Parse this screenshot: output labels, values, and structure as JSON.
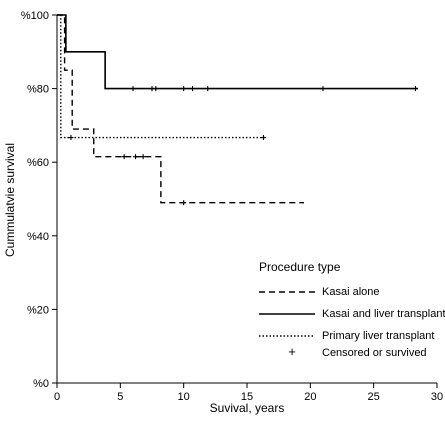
{
  "chart_data": {
    "type": "line",
    "subtype": "kaplan-meier-step",
    "xlabel": "Suvival, years",
    "ylabel": "Cummulatvie survival",
    "xlim": [
      0,
      30
    ],
    "ylim": [
      0,
      100
    ],
    "x_ticks": [
      0,
      5,
      10,
      15,
      20,
      25,
      30
    ],
    "y_ticks": [
      {
        "value": 0,
        "label": "%0"
      },
      {
        "value": 20,
        "label": "%20"
      },
      {
        "value": 40,
        "label": "%40"
      },
      {
        "value": 60,
        "label": "%60"
      },
      {
        "value": 80,
        "label": "%80"
      },
      {
        "value": 100,
        "label": "%100"
      }
    ],
    "grid": false,
    "legend": {
      "title": "Procedure type",
      "placement": "lower-right",
      "censor_label": "Censored or survived",
      "censor_symbol": "+"
    },
    "series": [
      {
        "name": "Kasai alone",
        "style": "dashed",
        "color": "#000000",
        "steps": [
          [
            0,
            100
          ],
          [
            0.6,
            85
          ],
          [
            1.2,
            69
          ],
          [
            2.9,
            61.5
          ],
          [
            8.2,
            49
          ],
          [
            19.5,
            49
          ]
        ],
        "censored": [
          [
            5.3,
            61.5
          ],
          [
            6.2,
            61.5
          ],
          [
            6.8,
            61.5
          ],
          [
            10.0,
            49
          ]
        ]
      },
      {
        "name": "Kasai and liver transplant",
        "style": "solid",
        "color": "#000000",
        "steps": [
          [
            0,
            100
          ],
          [
            0.7,
            90
          ],
          [
            3.8,
            80
          ],
          [
            28.5,
            80
          ]
        ],
        "censored": [
          [
            6.0,
            80
          ],
          [
            7.5,
            80
          ],
          [
            7.8,
            80
          ],
          [
            10.0,
            80
          ],
          [
            10.7,
            80
          ],
          [
            11.9,
            80
          ],
          [
            21.0,
            80
          ],
          [
            28.3,
            80
          ]
        ]
      },
      {
        "name": "Primary liver transplant",
        "style": "dotted",
        "color": "#000000",
        "steps": [
          [
            0,
            100
          ],
          [
            0.3,
            66.7
          ],
          [
            16.5,
            66.7
          ]
        ],
        "censored": [
          [
            1.1,
            66.7
          ],
          [
            16.3,
            66.7
          ]
        ]
      }
    ]
  }
}
